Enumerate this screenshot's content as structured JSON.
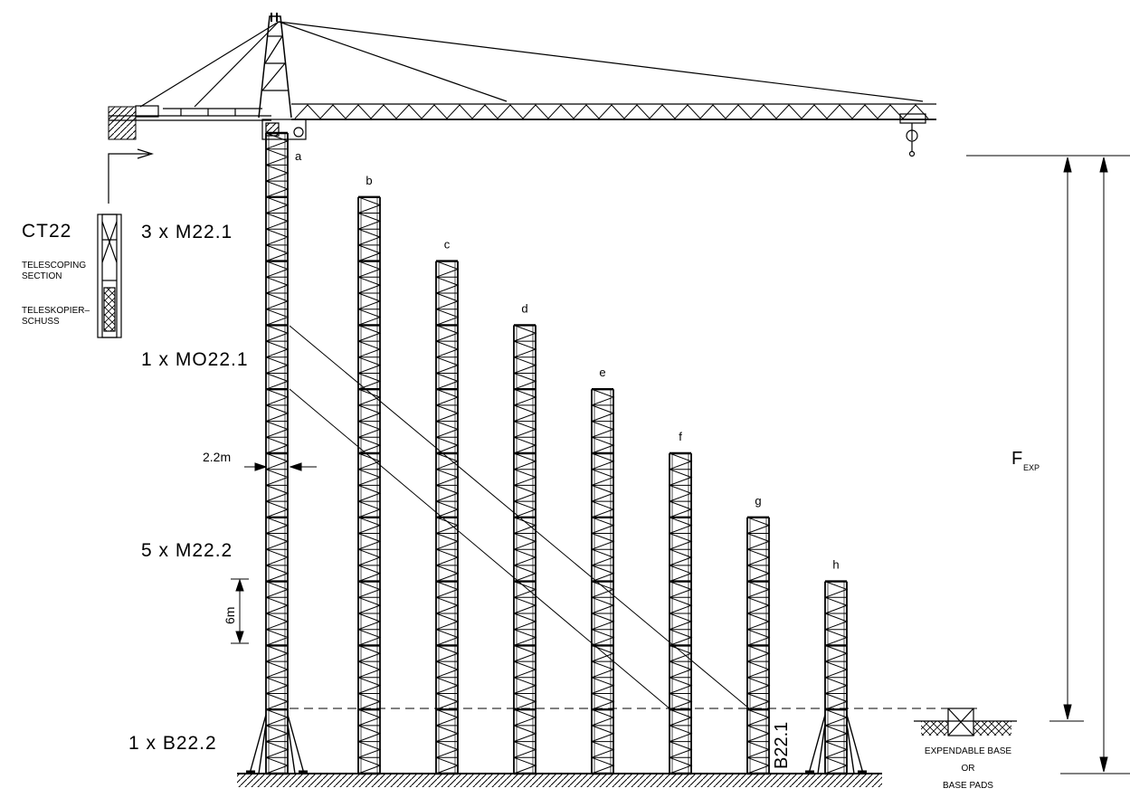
{
  "crane": {
    "model": "CT22",
    "telescoping_en": [
      "TELESCOPING",
      "SECTION"
    ],
    "telescoping_de": [
      "TELESKOPIER–",
      "SCHUSS"
    ]
  },
  "sections": {
    "top": "3 x M22.1",
    "mid": "1 x MO22.1",
    "lower": "5 x M22.2",
    "base": "1 x B22.2",
    "side_base": "B22.1"
  },
  "dimensions": {
    "width": "2.2m",
    "segment": "6m",
    "height_symbol": "F",
    "height_subscript": "EXP"
  },
  "configurations": [
    {
      "label": "a",
      "sections": 10,
      "base": "cross"
    },
    {
      "label": "b",
      "sections": 9,
      "base": "none"
    },
    {
      "label": "c",
      "sections": 8,
      "base": "none"
    },
    {
      "label": "d",
      "sections": 7,
      "base": "none"
    },
    {
      "label": "e",
      "sections": 6,
      "base": "none"
    },
    {
      "label": "f",
      "sections": 5,
      "base": "none"
    },
    {
      "label": "g",
      "sections": 4,
      "base": "none"
    },
    {
      "label": "h",
      "sections": 3,
      "base": "cross"
    }
  ],
  "base_options": [
    "EXPENDABLE BASE",
    "OR",
    "BASE PADS"
  ]
}
